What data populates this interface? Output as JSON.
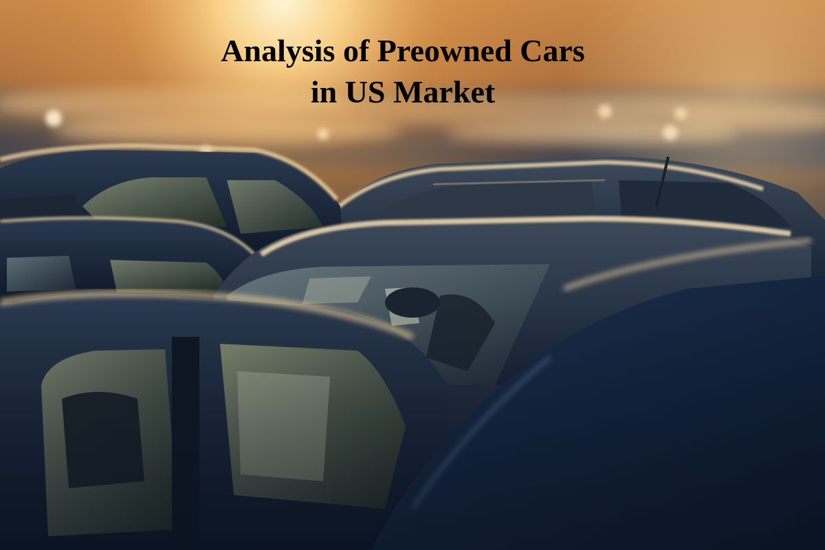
{
  "title": {
    "line1": "Analysis of Preowned Cars",
    "line2": "in US Market"
  },
  "photo": {
    "subject": "car-lot-at-sunset",
    "palette": {
      "sun_glow": "#fff2c4",
      "warm_haze": "#e0a45a",
      "roof_highlight": "#f2dcb4",
      "car_shadow": "#10213a",
      "window_glass": "#6f7c6a"
    }
  }
}
